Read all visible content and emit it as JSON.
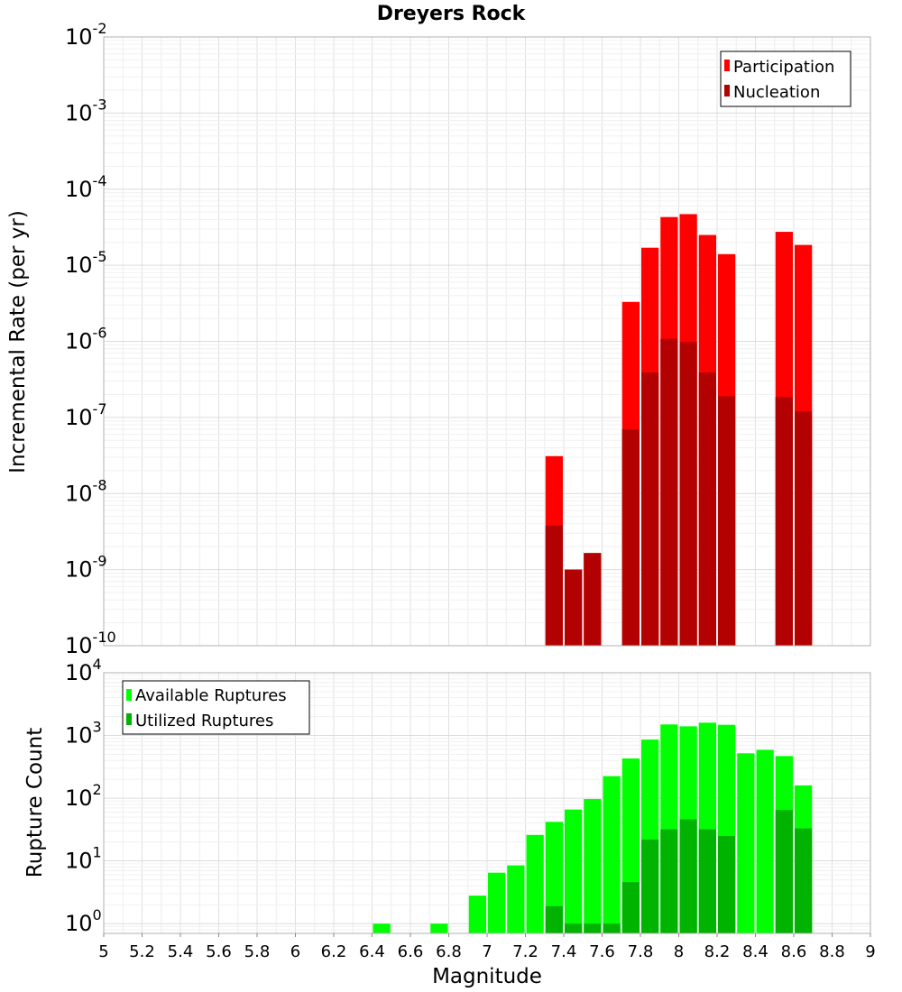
{
  "title": "Dreyers Rock",
  "chart_data": [
    {
      "type": "bar",
      "panel": "top",
      "ylabel": "Incremental Rate (per yr)",
      "yscale": "log",
      "ylim": [
        1e-10,
        0.01
      ],
      "xlim": [
        5,
        9
      ],
      "bin_width": 0.1,
      "y_tick_exponents": [
        "-10",
        "-9",
        "-8",
        "-7",
        "-6",
        "-5",
        "-4",
        "-3",
        "-2"
      ],
      "legend": {
        "position": "top-right",
        "entries": [
          "Participation",
          "Nucleation"
        ]
      },
      "series": [
        {
          "name": "Participation",
          "color": "#ff0000",
          "x": [
            7.35,
            7.45,
            7.55,
            7.75,
            7.85,
            7.95,
            8.05,
            8.15,
            8.25,
            8.55,
            8.65
          ],
          "values": [
            3.1e-08,
            1e-09,
            1.65e-09,
            3.3e-06,
            1.7e-05,
            4.3e-05,
            4.7e-05,
            2.5e-05,
            1.4e-05,
            2.75e-05,
            1.85e-05
          ]
        },
        {
          "name": "Nucleation",
          "color": "#b30000",
          "x": [
            7.35,
            7.45,
            7.55,
            7.75,
            7.85,
            7.95,
            8.05,
            8.15,
            8.25,
            8.55,
            8.65
          ],
          "values": [
            3.8e-09,
            1e-09,
            1.65e-09,
            7e-08,
            3.9e-07,
            1.08e-06,
            9.8e-07,
            3.9e-07,
            1.9e-07,
            1.85e-07,
            1.2e-07
          ]
        }
      ]
    },
    {
      "type": "bar",
      "panel": "bottom",
      "ylabel": "Rupture Count",
      "xlabel": "Magnitude",
      "yscale": "log",
      "ylim": [
        0.7,
        10000
      ],
      "xlim": [
        5,
        9
      ],
      "bin_width": 0.1,
      "y_tick_exponents": [
        "0",
        "1",
        "2",
        "3",
        "4"
      ],
      "x_tick_labels": [
        "5",
        "5.2",
        "5.4",
        "5.6",
        "5.8",
        "6",
        "6.2",
        "6.4",
        "6.6",
        "6.8",
        "7",
        "7.2",
        "7.4",
        "7.6",
        "7.8",
        "8",
        "8.2",
        "8.4",
        "8.6",
        "8.8",
        "9"
      ],
      "legend": {
        "position": "top-left",
        "entries": [
          "Available Ruptures",
          "Utilized Ruptures"
        ]
      },
      "series": [
        {
          "name": "Available Ruptures",
          "color": "#00ff00",
          "x": [
            6.45,
            6.75,
            6.95,
            7.05,
            7.15,
            7.25,
            7.35,
            7.45,
            7.55,
            7.65,
            7.75,
            7.85,
            7.95,
            8.05,
            8.15,
            8.25,
            8.35,
            8.45,
            8.55,
            8.65
          ],
          "values": [
            1,
            1,
            2.8,
            6.5,
            8.5,
            26,
            42,
            66,
            97,
            225,
            430,
            860,
            1500,
            1400,
            1600,
            1480,
            520,
            590,
            470,
            160
          ]
        },
        {
          "name": "Utilized Ruptures",
          "color": "#00b300",
          "x": [
            7.35,
            7.45,
            7.55,
            7.65,
            7.75,
            7.85,
            7.95,
            8.05,
            8.15,
            8.25,
            8.55,
            8.65
          ],
          "values": [
            1.9,
            1,
            1,
            1,
            4.6,
            22,
            32,
            46,
            32,
            25,
            65,
            33
          ]
        }
      ]
    }
  ]
}
